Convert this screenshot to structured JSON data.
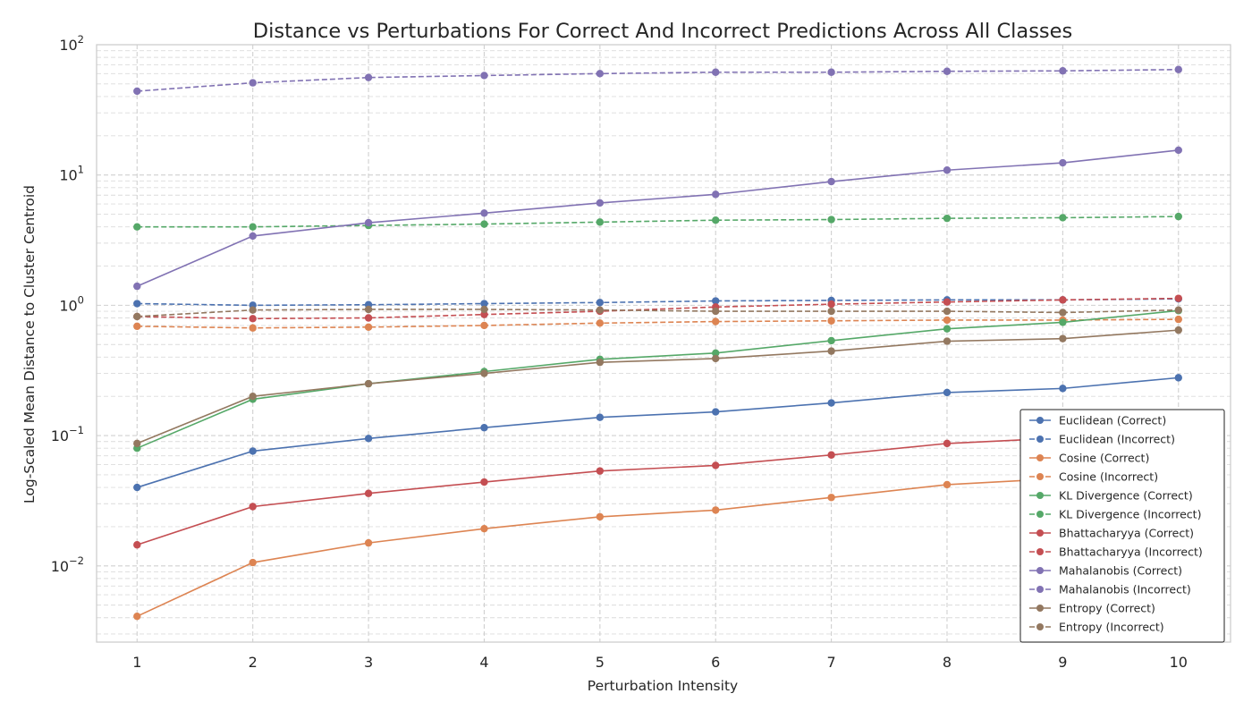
{
  "chart_data": {
    "type": "line",
    "title": "Distance vs Perturbations For Correct And Incorrect Predictions Across All Classes",
    "xlabel": "Perturbation Intensity",
    "ylabel": "Log-Scaled Mean Distance to Cluster Centroid",
    "yscale": "log",
    "x": [
      1,
      2,
      3,
      4,
      5,
      6,
      7,
      8,
      9,
      10
    ],
    "xlim": [
      0.65,
      10.45
    ],
    "ylim": [
      0.0026,
      100
    ],
    "y_major_ticks": [
      {
        "value": 0.01,
        "base": "10",
        "exp": "−2"
      },
      {
        "value": 0.1,
        "base": "10",
        "exp": "−1"
      },
      {
        "value": 1,
        "base": "10",
        "exp": "0"
      },
      {
        "value": 10,
        "base": "10",
        "exp": "1"
      },
      {
        "value": 100,
        "base": "10",
        "exp": "2"
      }
    ],
    "grid": true,
    "legend_position": "lower-right",
    "series": [
      {
        "name": "Euclidean (Correct)",
        "color": "#4c72b0",
        "dashed": false,
        "values": [
          0.04,
          0.076,
          0.095,
          0.115,
          0.138,
          0.152,
          0.178,
          0.214,
          0.23,
          0.278
        ]
      },
      {
        "name": "Euclidean (Incorrect)",
        "color": "#4c72b0",
        "dashed": true,
        "values": [
          1.03,
          1.0,
          1.01,
          1.03,
          1.05,
          1.08,
          1.09,
          1.1,
          1.1,
          1.12
        ]
      },
      {
        "name": "Cosine (Correct)",
        "color": "#dd8452",
        "dashed": false,
        "values": [
          0.0041,
          0.0106,
          0.015,
          0.0193,
          0.0238,
          0.0268,
          0.0335,
          0.042,
          0.047,
          0.061
        ]
      },
      {
        "name": "Cosine (Incorrect)",
        "color": "#dd8452",
        "dashed": true,
        "values": [
          0.69,
          0.67,
          0.68,
          0.7,
          0.73,
          0.75,
          0.76,
          0.77,
          0.77,
          0.78
        ]
      },
      {
        "name": "KL Divergence (Correct)",
        "color": "#55a868",
        "dashed": false,
        "values": [
          0.08,
          0.19,
          0.25,
          0.31,
          0.385,
          0.43,
          0.535,
          0.66,
          0.74,
          0.91
        ]
      },
      {
        "name": "KL Divergence (Incorrect)",
        "color": "#55a868",
        "dashed": true,
        "values": [
          4.0,
          4.0,
          4.1,
          4.2,
          4.35,
          4.5,
          4.55,
          4.65,
          4.7,
          4.8
        ]
      },
      {
        "name": "Bhattacharyya (Correct)",
        "color": "#c44e52",
        "dashed": false,
        "values": [
          0.0145,
          0.0285,
          0.036,
          0.044,
          0.0535,
          0.059,
          0.071,
          0.087,
          0.096,
          0.118
        ]
      },
      {
        "name": "Bhattacharyya (Incorrect)",
        "color": "#c44e52",
        "dashed": true,
        "values": [
          0.82,
          0.79,
          0.8,
          0.85,
          0.9,
          0.97,
          1.02,
          1.06,
          1.1,
          1.13
        ]
      },
      {
        "name": "Mahalanobis (Correct)",
        "color": "#8172b3",
        "dashed": false,
        "values": [
          1.4,
          3.4,
          4.3,
          5.1,
          6.1,
          7.1,
          8.9,
          10.9,
          12.4,
          15.5
        ]
      },
      {
        "name": "Mahalanobis (Incorrect)",
        "color": "#8172b3",
        "dashed": true,
        "values": [
          44,
          51,
          56,
          58,
          60,
          61.5,
          61.5,
          62.5,
          63,
          64.5
        ]
      },
      {
        "name": "Entropy (Correct)",
        "color": "#937860",
        "dashed": false,
        "values": [
          0.087,
          0.2,
          0.25,
          0.3,
          0.365,
          0.39,
          0.445,
          0.53,
          0.555,
          0.645
        ]
      },
      {
        "name": "Entropy (Incorrect)",
        "color": "#937860",
        "dashed": true,
        "values": [
          0.82,
          0.92,
          0.93,
          0.93,
          0.92,
          0.9,
          0.9,
          0.9,
          0.88,
          0.92
        ]
      }
    ]
  }
}
